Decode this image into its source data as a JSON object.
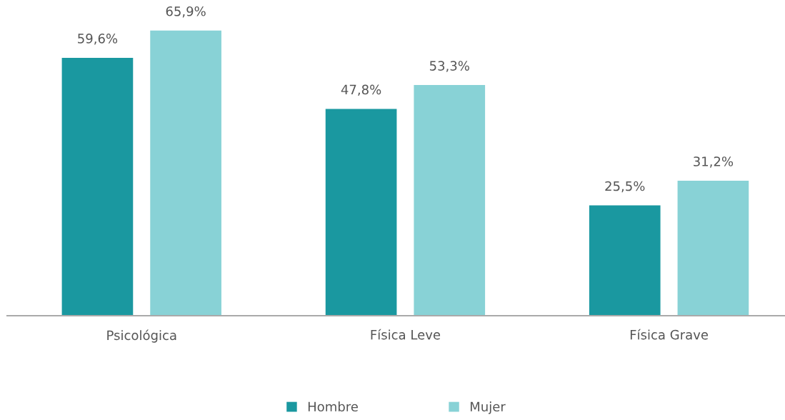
{
  "chart_data": {
    "type": "bar",
    "categories": [
      "Psicológica",
      "Física Leve",
      "Física Grave"
    ],
    "series": [
      {
        "name": "Hombre",
        "color": "#1a98a0",
        "values": [
          59.6,
          47.8,
          25.5
        ],
        "value_labels": [
          "59,6%",
          "47,8%",
          "25,5%"
        ]
      },
      {
        "name": "Mujer",
        "color": "#88d2d6",
        "values": [
          65.9,
          53.3,
          31.2
        ],
        "value_labels": [
          "65,9%",
          "53,3%",
          "31,2%"
        ]
      }
    ],
    "tick_labels": "x",
    "grid": false,
    "legend": "bottom"
  }
}
